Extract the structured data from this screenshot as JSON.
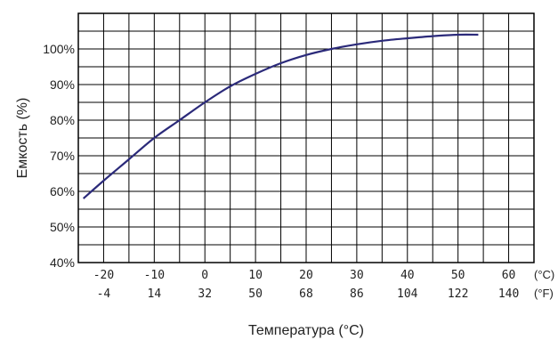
{
  "chart_data": {
    "type": "line",
    "title": "",
    "xlabel": "Температура (°C)",
    "ylabel": "Емкость (%)",
    "xlim": [
      -25,
      65
    ],
    "ylim": [
      40,
      110
    ],
    "grid": true,
    "colors": {
      "line": "#2b2a7a",
      "grid": "#000000",
      "text": "#222222"
    },
    "y_ticks": [
      40,
      50,
      60,
      70,
      80,
      90,
      100
    ],
    "y_tick_labels": [
      "40%",
      "50%",
      "60%",
      "70%",
      "80%",
      "90%",
      "100%"
    ],
    "x_ticks_c": [
      -20,
      -10,
      0,
      10,
      20,
      30,
      40,
      50,
      60
    ],
    "x_tick_labels_c": [
      "-20",
      "-10",
      "0",
      "10",
      "20",
      "30",
      "40",
      "50",
      "60"
    ],
    "x_tick_labels_f": [
      "-4",
      "14",
      "32",
      "50",
      "68",
      "86",
      "104",
      "122",
      "140"
    ],
    "unit_c": "(°C)",
    "unit_f": "(°F)",
    "series": [
      {
        "x": [
          -24,
          -20,
          -15,
          -10,
          -5,
          0,
          5,
          10,
          15,
          20,
          25,
          30,
          35,
          40,
          45,
          50,
          54
        ],
        "values": [
          58,
          63,
          69,
          75,
          80,
          85,
          89.5,
          93,
          96,
          98.3,
          100,
          101.3,
          102.3,
          103,
          103.6,
          104,
          104
        ]
      }
    ]
  }
}
